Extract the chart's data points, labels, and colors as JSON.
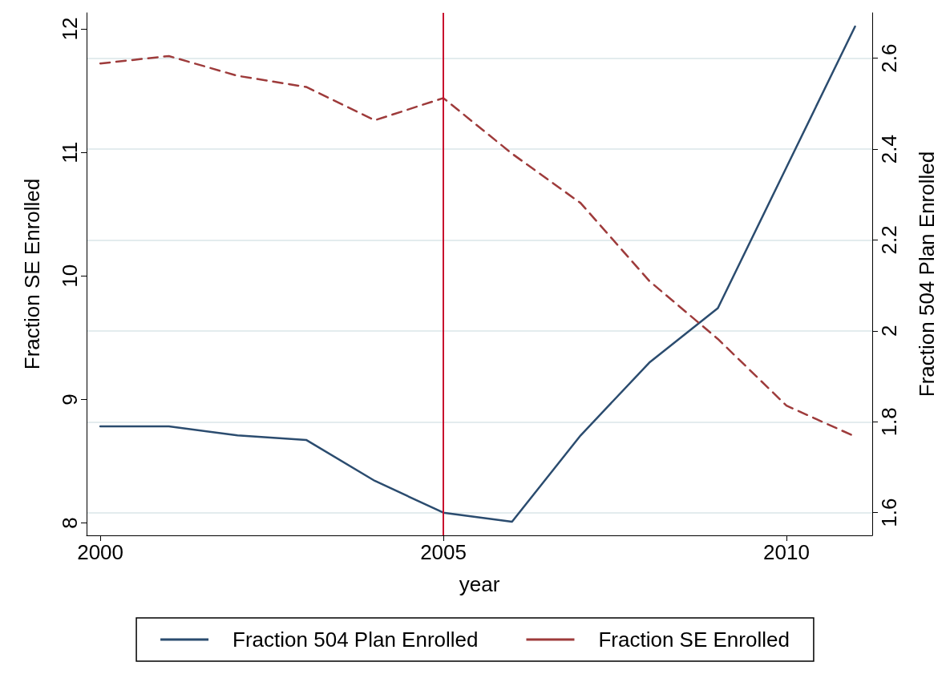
{
  "chart_data": {
    "type": "line",
    "xlabel": "year",
    "ylabel": "Fraction SE Enrolled",
    "y2label": "Fraction 504 Plan Enrolled",
    "x": [
      2000,
      2001,
      2002,
      2003,
      2004,
      2005,
      2006,
      2007,
      2008,
      2009,
      2010,
      2011
    ],
    "series": [
      {
        "name": "Fraction 504 Plan Enrolled",
        "color": "#2b4c6f",
        "axis": "y2",
        "line_style": "solid",
        "values": [
          1.79,
          1.79,
          1.77,
          1.76,
          1.67,
          1.6,
          1.58,
          1.77,
          1.93,
          2.05,
          2.36,
          2.67
        ]
      },
      {
        "name": "Fraction SE Enrolled",
        "color": "#9e3b3b",
        "axis": "y",
        "line_style": "dashed",
        "values": [
          11.72,
          11.78,
          11.62,
          11.53,
          11.26,
          11.44,
          10.99,
          10.59,
          9.96,
          9.49,
          8.95,
          8.7
        ]
      }
    ],
    "xlim": [
      1999.8,
      2011.25
    ],
    "xticks": [
      2000,
      2005,
      2010
    ],
    "ylim": [
      7.9,
      12.13
    ],
    "yticks": [
      8,
      9,
      10,
      11,
      12
    ],
    "y2lim": [
      1.55,
      2.7
    ],
    "y2ticks": [
      1.6,
      1.8,
      2,
      2.2,
      2.4,
      2.6
    ],
    "ref_lines": [
      {
        "axis": "x",
        "value": 2005,
        "color": "#c8102e"
      }
    ],
    "grid": true,
    "legend": "bottom",
    "marker": "none"
  }
}
